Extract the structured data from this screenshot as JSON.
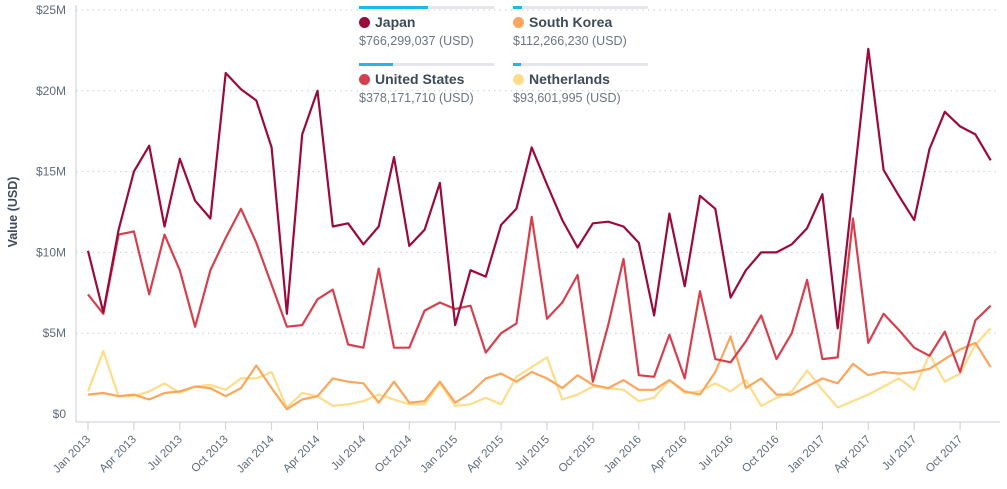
{
  "chart_data": {
    "type": "line",
    "title": "",
    "xlabel": "",
    "ylabel": "Value (USD)",
    "ylim": [
      0,
      25000000
    ],
    "yticks": [
      "$0",
      "$5M",
      "$10M",
      "$15M",
      "$20M",
      "$25M"
    ],
    "grid": "horizontal dotted",
    "legend_position": "top",
    "xtick_labels": [
      "Jan 2013",
      "Apr 2013",
      "Jul 2013",
      "Oct 2013",
      "Jan 2014",
      "Apr 2014",
      "Jul 2014",
      "Oct 2014",
      "Jan 2015",
      "Apr 2015",
      "Jul 2015",
      "Oct 2015",
      "Jan 2016",
      "Apr 2016",
      "Jul 2016",
      "Oct 2016",
      "Jan 2017",
      "Apr 2017",
      "Jul 2017",
      "Oct 2017"
    ],
    "x_start": "Jan 2013",
    "x_end": "Dec 2017",
    "unit": "millions USD per month",
    "series": [
      {
        "name": "Japan",
        "total": "$766,299,037 (USD)",
        "share": 0.51,
        "color": "#9b0a3c",
        "values": [
          10.1,
          6.3,
          11.4,
          15.0,
          16.6,
          11.6,
          15.8,
          13.2,
          12.1,
          21.1,
          20.1,
          19.4,
          16.5,
          6.2,
          17.3,
          20.0,
          11.6,
          11.8,
          10.5,
          11.6,
          15.9,
          10.4,
          11.4,
          14.3,
          5.5,
          8.9,
          8.5,
          11.7,
          12.7,
          16.5,
          14.2,
          12.0,
          10.3,
          11.8,
          11.9,
          11.6,
          10.6,
          6.1,
          12.4,
          7.9,
          13.5,
          12.7,
          7.2,
          8.9,
          10.0,
          10.0,
          10.5,
          11.5,
          13.6,
          5.3,
          13.9,
          22.6,
          15.1,
          13.5,
          12.0,
          16.4,
          18.7,
          17.8,
          17.3,
          15.7
        ]
      },
      {
        "name": "South Korea",
        "total": "$112,266,230 (USD)",
        "share": 0.07,
        "color": "#fba65c",
        "values": [
          1.2,
          1.3,
          1.1,
          1.2,
          0.9,
          1.3,
          1.4,
          1.7,
          1.6,
          1.1,
          1.6,
          3.0,
          1.6,
          0.3,
          0.9,
          1.1,
          2.2,
          2.0,
          1.9,
          0.7,
          2.0,
          0.7,
          0.8,
          2.0,
          0.7,
          1.3,
          2.2,
          2.5,
          2.0,
          2.6,
          2.2,
          1.6,
          2.4,
          1.8,
          1.6,
          2.1,
          1.5,
          1.5,
          2.1,
          1.4,
          1.2,
          2.6,
          4.8,
          1.6,
          2.2,
          1.2,
          1.2,
          1.7,
          2.2,
          1.9,
          3.1,
          2.4,
          2.6,
          2.5,
          2.6,
          2.8,
          3.4,
          4.0,
          4.4,
          2.9
        ]
      },
      {
        "name": "United States",
        "total": "$378,171,710 (USD)",
        "share": 0.25,
        "color": "#d6404e",
        "values": [
          7.4,
          6.2,
          11.1,
          11.3,
          7.4,
          11.1,
          8.9,
          5.4,
          8.9,
          10.9,
          12.7,
          10.6,
          8.0,
          5.4,
          5.5,
          7.1,
          7.7,
          4.3,
          4.1,
          9.0,
          4.1,
          4.1,
          6.4,
          6.9,
          6.5,
          6.7,
          3.8,
          5.0,
          5.6,
          12.2,
          5.9,
          6.9,
          8.6,
          2.0,
          5.5,
          9.6,
          2.4,
          2.3,
          4.9,
          2.2,
          7.6,
          3.4,
          3.2,
          4.5,
          6.1,
          3.4,
          5.0,
          8.3,
          3.4,
          3.5,
          12.1,
          4.4,
          6.2,
          5.2,
          4.1,
          3.6,
          5.1,
          2.6,
          5.8,
          6.7
        ]
      },
      {
        "name": "Netherlands",
        "total": "$93,601,995 (USD)",
        "share": 0.06,
        "color": "#fedd8a",
        "values": [
          1.4,
          3.9,
          1.1,
          1.1,
          1.4,
          1.9,
          1.3,
          1.7,
          1.8,
          1.5,
          2.2,
          2.2,
          2.6,
          0.4,
          1.3,
          1.1,
          0.5,
          0.6,
          0.8,
          1.2,
          0.9,
          0.6,
          0.6,
          1.9,
          0.5,
          0.6,
          1.0,
          0.6,
          2.3,
          2.9,
          3.5,
          0.9,
          1.2,
          1.7,
          1.6,
          1.5,
          0.8,
          1.0,
          2.1,
          1.3,
          1.4,
          1.9,
          1.4,
          2.1,
          0.5,
          1.0,
          1.4,
          2.7,
          1.5,
          0.4,
          0.8,
          1.2,
          1.7,
          2.2,
          1.5,
          3.7,
          2.0,
          2.5,
          4.3,
          5.3
        ]
      }
    ]
  }
}
